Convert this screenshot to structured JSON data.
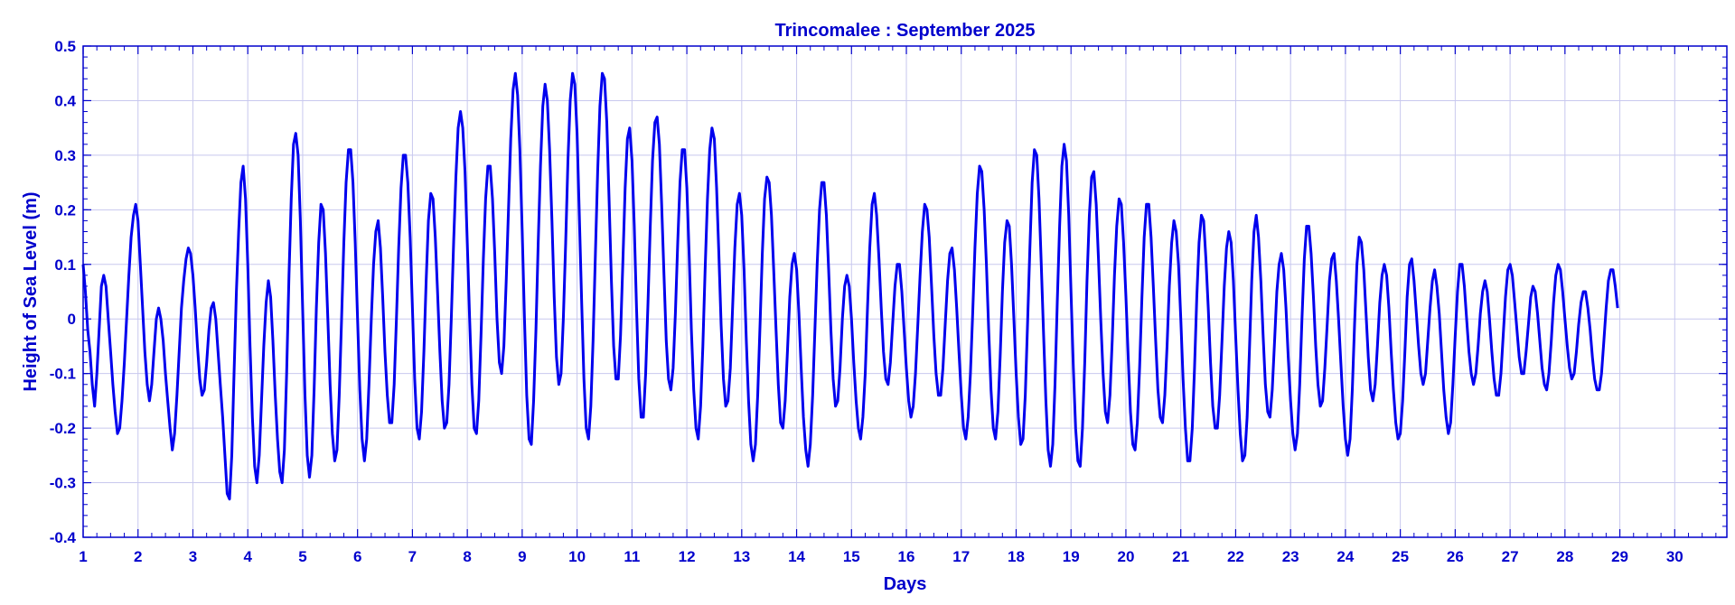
{
  "chart_data": {
    "type": "line",
    "title": "Trincomalee : September 2025",
    "xlabel": "Days",
    "ylabel": "Height of Sea Level (m)",
    "xlim": [
      1,
      30.95
    ],
    "ylim": [
      -0.4,
      0.5
    ],
    "x_ticks": [
      "1",
      "2",
      "3",
      "4",
      "5",
      "6",
      "7",
      "8",
      "9",
      "10",
      "11",
      "12",
      "13",
      "14",
      "15",
      "16",
      "17",
      "18",
      "19",
      "20",
      "21",
      "22",
      "23",
      "24",
      "25",
      "26",
      "27",
      "28",
      "29",
      "30"
    ],
    "y_ticks": [
      "-0.4",
      "-0.3",
      "-0.2",
      "-0.1",
      "0",
      "0.1",
      "0.2",
      "0.3",
      "0.4",
      "0.5"
    ],
    "grid": true,
    "sampling": "hourly (approximate reading, x in days)",
    "series": [
      {
        "color": "#0000ee",
        "x_start": 1,
        "x_step": 0.041667,
        "values": [
          0.1,
          0.05,
          -0.02,
          -0.06,
          -0.12,
          -0.16,
          -0.1,
          -0.02,
          0.06,
          0.08,
          0.06,
          0.0,
          -0.06,
          -0.12,
          -0.17,
          -0.21,
          -0.2,
          -0.15,
          -0.08,
          0.0,
          0.08,
          0.15,
          0.19,
          0.21,
          0.18,
          0.1,
          0.02,
          -0.06,
          -0.12,
          -0.15,
          -0.12,
          -0.06,
          0.0,
          0.02,
          0.0,
          -0.04,
          -0.1,
          -0.15,
          -0.2,
          -0.24,
          -0.21,
          -0.14,
          -0.06,
          0.02,
          0.07,
          0.11,
          0.13,
          0.12,
          0.08,
          0.02,
          -0.05,
          -0.11,
          -0.14,
          -0.13,
          -0.08,
          -0.02,
          0.02,
          0.03,
          0.0,
          -0.06,
          -0.12,
          -0.18,
          -0.25,
          -0.32,
          -0.33,
          -0.25,
          -0.1,
          0.05,
          0.16,
          0.25,
          0.28,
          0.22,
          0.1,
          -0.05,
          -0.18,
          -0.27,
          -0.3,
          -0.25,
          -0.15,
          -0.05,
          0.03,
          0.07,
          0.04,
          -0.04,
          -0.14,
          -0.22,
          -0.28,
          -0.3,
          -0.24,
          -0.1,
          0.08,
          0.22,
          0.32,
          0.34,
          0.3,
          0.18,
          0.02,
          -0.14,
          -0.25,
          -0.29,
          -0.25,
          -0.13,
          0.02,
          0.14,
          0.21,
          0.2,
          0.12,
          0.0,
          -0.12,
          -0.21,
          -0.26,
          -0.24,
          -0.14,
          0.0,
          0.14,
          0.25,
          0.31,
          0.31,
          0.25,
          0.14,
          0.0,
          -0.13,
          -0.22,
          -0.26,
          -0.22,
          -0.12,
          0.0,
          0.1,
          0.16,
          0.18,
          0.13,
          0.04,
          -0.06,
          -0.14,
          -0.19,
          -0.19,
          -0.12,
          0.0,
          0.13,
          0.24,
          0.3,
          0.3,
          0.25,
          0.15,
          0.02,
          -0.11,
          -0.2,
          -0.22,
          -0.17,
          -0.06,
          0.07,
          0.18,
          0.23,
          0.22,
          0.15,
          0.05,
          -0.06,
          -0.15,
          -0.2,
          -0.19,
          -0.12,
          0.0,
          0.14,
          0.26,
          0.35,
          0.38,
          0.35,
          0.27,
          0.14,
          0.0,
          -0.12,
          -0.2,
          -0.21,
          -0.15,
          -0.03,
          0.11,
          0.22,
          0.28,
          0.28,
          0.22,
          0.12,
          0.0,
          -0.08,
          -0.1,
          -0.05,
          0.07,
          0.2,
          0.33,
          0.42,
          0.45,
          0.41,
          0.31,
          0.16,
          0.0,
          -0.14,
          -0.22,
          -0.23,
          -0.15,
          -0.02,
          0.14,
          0.28,
          0.39,
          0.43,
          0.4,
          0.31,
          0.18,
          0.04,
          -0.07,
          -0.12,
          -0.1,
          0.0,
          0.14,
          0.29,
          0.4,
          0.45,
          0.43,
          0.34,
          0.19,
          0.03,
          -0.11,
          -0.2,
          -0.22,
          -0.16,
          -0.04,
          0.12,
          0.27,
          0.39,
          0.45,
          0.44,
          0.36,
          0.22,
          0.07,
          -0.05,
          -0.11,
          -0.11,
          -0.03,
          0.1,
          0.24,
          0.33,
          0.35,
          0.29,
          0.17,
          0.02,
          -0.11,
          -0.18,
          -0.18,
          -0.1,
          0.03,
          0.17,
          0.29,
          0.36,
          0.37,
          0.32,
          0.21,
          0.08,
          -0.04,
          -0.11,
          -0.13,
          -0.09,
          0.01,
          0.14,
          0.25,
          0.31,
          0.31,
          0.24,
          0.12,
          -0.02,
          -0.13,
          -0.2,
          -0.22,
          -0.16,
          -0.05,
          0.09,
          0.22,
          0.31,
          0.35,
          0.33,
          0.24,
          0.12,
          -0.01,
          -0.11,
          -0.16,
          -0.15,
          -0.09,
          0.02,
          0.13,
          0.21,
          0.23,
          0.19,
          0.09,
          -0.04,
          -0.15,
          -0.23,
          -0.26,
          -0.23,
          -0.14,
          -0.01,
          0.12,
          0.22,
          0.26,
          0.25,
          0.19,
          0.09,
          -0.02,
          -0.12,
          -0.19,
          -0.2,
          -0.15,
          -0.06,
          0.04,
          0.1,
          0.12,
          0.09,
          0.01,
          -0.09,
          -0.18,
          -0.24,
          -0.27,
          -0.23,
          -0.14,
          -0.02,
          0.1,
          0.2,
          0.25,
          0.25,
          0.19,
          0.09,
          -0.02,
          -0.11,
          -0.16,
          -0.15,
          -0.09,
          0.0,
          0.06,
          0.08,
          0.06,
          0.0,
          -0.08,
          -0.15,
          -0.2,
          -0.22,
          -0.18,
          -0.1,
          0.02,
          0.13,
          0.21,
          0.23,
          0.19,
          0.11,
          0.02,
          -0.06,
          -0.11,
          -0.12,
          -0.08,
          -0.01,
          0.06,
          0.1,
          0.1,
          0.05,
          -0.02,
          -0.09,
          -0.15,
          -0.18,
          -0.16,
          -0.1,
          -0.01,
          0.08,
          0.16,
          0.21,
          0.2,
          0.15,
          0.06,
          -0.03,
          -0.1,
          -0.14,
          -0.14,
          -0.09,
          -0.01,
          0.07,
          0.12,
          0.13,
          0.09,
          0.02,
          -0.06,
          -0.14,
          -0.2,
          -0.22,
          -0.18,
          -0.1,
          0.01,
          0.13,
          0.23,
          0.28,
          0.27,
          0.2,
          0.1,
          -0.02,
          -0.13,
          -0.2,
          -0.22,
          -0.17,
          -0.07,
          0.05,
          0.14,
          0.18,
          0.17,
          0.1,
          0.0,
          -0.1,
          -0.18,
          -0.23,
          -0.22,
          -0.14,
          -0.01,
          0.13,
          0.25,
          0.31,
          0.3,
          0.22,
          0.1,
          -0.03,
          -0.15,
          -0.24,
          -0.27,
          -0.23,
          -0.12,
          0.03,
          0.17,
          0.28,
          0.32,
          0.29,
          0.19,
          0.05,
          -0.09,
          -0.2,
          -0.26,
          -0.27,
          -0.2,
          -0.08,
          0.07,
          0.19,
          0.26,
          0.27,
          0.21,
          0.11,
          0.0,
          -0.1,
          -0.17,
          -0.19,
          -0.14,
          -0.04,
          0.08,
          0.17,
          0.22,
          0.21,
          0.14,
          0.04,
          -0.07,
          -0.17,
          -0.23,
          -0.24,
          -0.19,
          -0.09,
          0.04,
          0.15,
          0.21,
          0.21,
          0.15,
          0.06,
          -0.04,
          -0.13,
          -0.18,
          -0.19,
          -0.14,
          -0.05,
          0.06,
          0.14,
          0.18,
          0.16,
          0.1,
          0.0,
          -0.11,
          -0.2,
          -0.26,
          -0.26,
          -0.2,
          -0.09,
          0.04,
          0.14,
          0.19,
          0.18,
          0.11,
          0.02,
          -0.08,
          -0.16,
          -0.2,
          -0.2,
          -0.14,
          -0.04,
          0.06,
          0.13,
          0.16,
          0.14,
          0.07,
          -0.03,
          -0.13,
          -0.21,
          -0.26,
          -0.25,
          -0.18,
          -0.06,
          0.07,
          0.16,
          0.19,
          0.15,
          0.07,
          -0.03,
          -0.12,
          -0.17,
          -0.18,
          -0.13,
          -0.04,
          0.05,
          0.1,
          0.12,
          0.09,
          0.02,
          -0.07,
          -0.15,
          -0.21,
          -0.24,
          -0.21,
          -0.12,
          0.0,
          0.11,
          0.17,
          0.17,
          0.12,
          0.04,
          -0.05,
          -0.12,
          -0.16,
          -0.15,
          -0.09,
          -0.01,
          0.07,
          0.11,
          0.12,
          0.07,
          0.0,
          -0.08,
          -0.16,
          -0.22,
          -0.25,
          -0.22,
          -0.13,
          -0.01,
          0.1,
          0.15,
          0.14,
          0.09,
          0.01,
          -0.07,
          -0.13,
          -0.15,
          -0.12,
          -0.05,
          0.03,
          0.08,
          0.1,
          0.08,
          0.02,
          -0.06,
          -0.13,
          -0.19,
          -0.22,
          -0.21,
          -0.15,
          -0.06,
          0.04,
          0.1,
          0.11,
          0.07,
          0.01,
          -0.05,
          -0.1,
          -0.12,
          -0.1,
          -0.04,
          0.02,
          0.07,
          0.09,
          0.06,
          0.01,
          -0.06,
          -0.13,
          -0.18,
          -0.21,
          -0.19,
          -0.12,
          -0.03,
          0.05,
          0.1,
          0.1,
          0.06,
          0.0,
          -0.06,
          -0.1,
          -0.12,
          -0.1,
          -0.05,
          0.01,
          0.05,
          0.07,
          0.05,
          0.0,
          -0.06,
          -0.11,
          -0.14,
          -0.14,
          -0.1,
          -0.03,
          0.04,
          0.09,
          0.1,
          0.08,
          0.03,
          -0.02,
          -0.07,
          -0.1,
          -0.1,
          -0.06,
          -0.01,
          0.04,
          0.06,
          0.05,
          0.01,
          -0.04,
          -0.09,
          -0.12,
          -0.13,
          -0.1,
          -0.04,
          0.03,
          0.08,
          0.1,
          0.09,
          0.05,
          0.0,
          -0.05,
          -0.09,
          -0.11,
          -0.1,
          -0.06,
          -0.01,
          0.03,
          0.05,
          0.05,
          0.02,
          -0.02,
          -0.07,
          -0.11,
          -0.13,
          -0.13,
          -0.1,
          -0.04,
          0.02,
          0.07,
          0.09,
          0.09,
          0.06,
          0.02
        ]
      }
    ]
  }
}
